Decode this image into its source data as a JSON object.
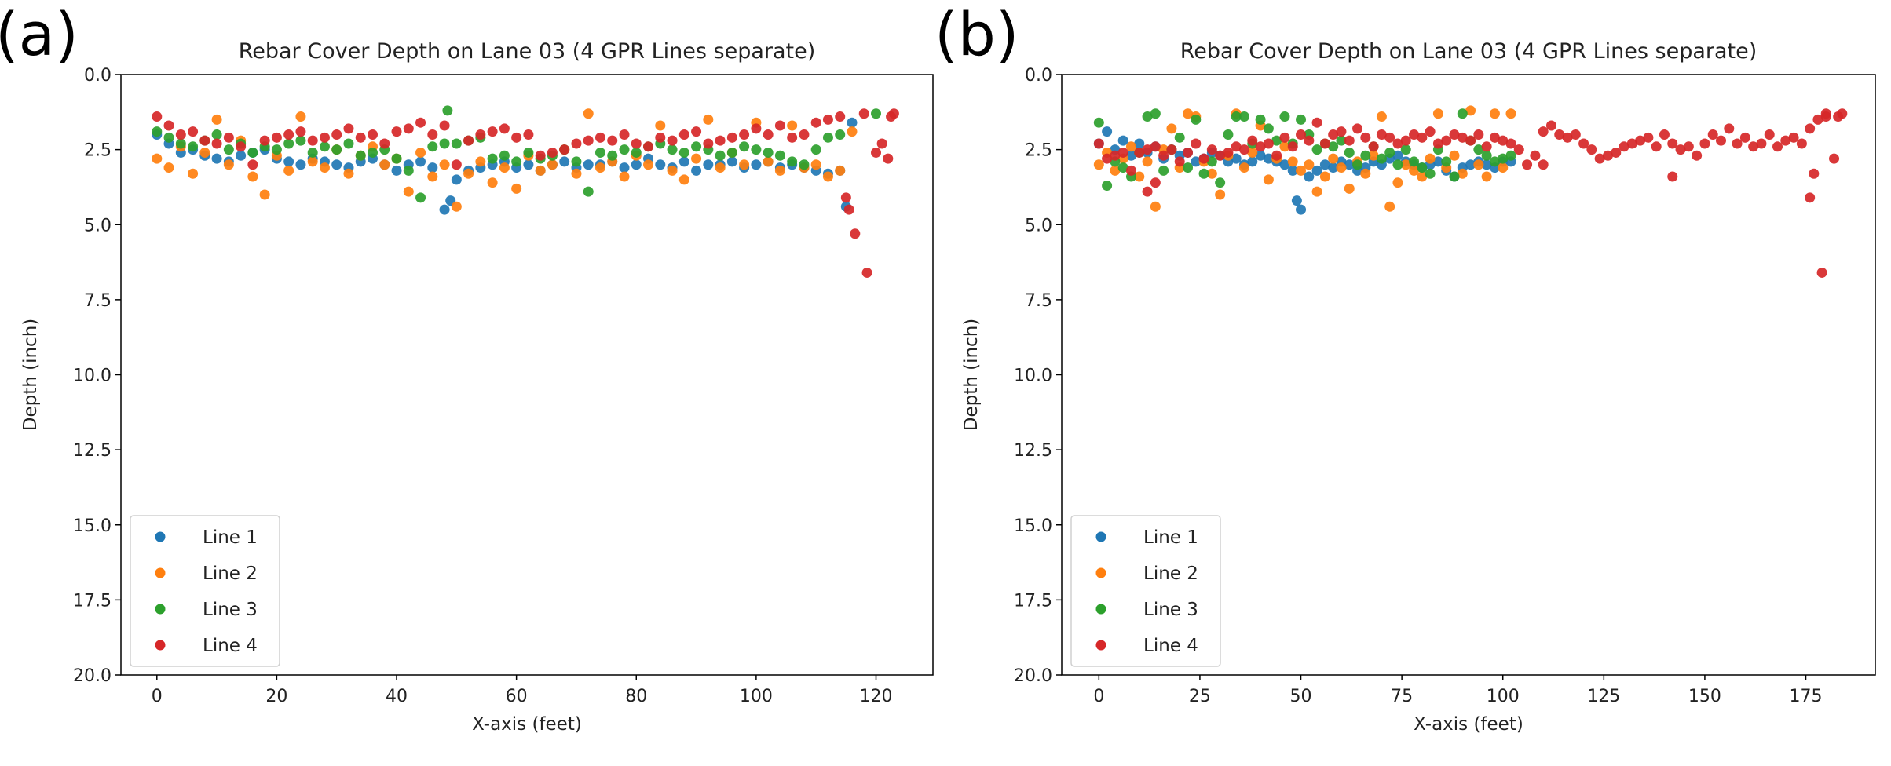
{
  "colors": {
    "Line 1": "#1f77b4",
    "Line 2": "#ff7f0e",
    "Line 3": "#2ca02c",
    "Line 4": "#d62728"
  },
  "chart_data": [
    {
      "panel_label": "(a)",
      "type": "scatter",
      "title": "Rebar Cover Depth on Lane 03 (4 GPR Lines separate)",
      "xlabel": "X-axis (feet)",
      "ylabel": "Depth (inch)",
      "xlim": [
        -6,
        129.5
      ],
      "ylim": [
        0,
        20
      ],
      "y_inverted": true,
      "xticks": [
        0,
        20,
        40,
        60,
        80,
        100,
        120
      ],
      "xtick_labels": [
        "0",
        "20",
        "40",
        "60",
        "80",
        "100",
        "120"
      ],
      "yticks": [
        0,
        2.5,
        5,
        7.5,
        10,
        12.5,
        15,
        17.5,
        20
      ],
      "ytick_labels": [
        "0.0",
        "2.5",
        "5.0",
        "7.5",
        "10.0",
        "12.5",
        "15.0",
        "17.5",
        "20.0"
      ],
      "legend": {
        "placement": "lower-left",
        "entries": [
          "Line 1",
          "Line 2",
          "Line 3",
          "Line 4"
        ]
      },
      "series": [
        {
          "name": "Line 1",
          "x_start": 0,
          "x_step": 2,
          "y": [
            2.0,
            2.3,
            2.6,
            2.5,
            2.7,
            2.8,
            2.9,
            2.7,
            2.6,
            2.5,
            2.8,
            2.9,
            3.0,
            2.8,
            2.9,
            3.0,
            3.1,
            2.9,
            2.8,
            3.0,
            3.2,
            3.0,
            2.9,
            3.1,
            4.5,
            3.5,
            3.2,
            3.1,
            3.0,
            2.9,
            3.1,
            3.0,
            3.2,
            3.0,
            2.9,
            3.1,
            3.0,
            3.0,
            2.9,
            3.1,
            3.0,
            2.8,
            3.0,
            3.1,
            2.9,
            3.2,
            3.0,
            3.0,
            2.9,
            3.1,
            3.0,
            2.9,
            3.1,
            3.0,
            3.1,
            3.2,
            3.3,
            3.2
          ],
          "extra": [
            [
              115,
              4.4
            ],
            [
              116,
              1.6
            ],
            [
              49,
              4.2
            ]
          ]
        },
        {
          "name": "Line 2",
          "x_start": 0,
          "x_step": 2,
          "y": [
            2.8,
            3.1,
            2.4,
            3.3,
            2.6,
            1.5,
            3.0,
            2.2,
            3.4,
            4.0,
            2.7,
            3.2,
            1.4,
            2.9,
            3.1,
            2.5,
            3.3,
            2.7,
            2.4,
            3.0,
            2.8,
            3.9,
            2.6,
            3.4,
            3.0,
            4.4,
            3.3,
            2.9,
            3.6,
            3.1,
            3.8,
            2.7,
            3.2,
            3.0,
            2.5,
            3.3,
            1.3,
            3.1,
            2.9,
            3.4,
            2.7,
            3.0,
            1.7,
            3.2,
            3.5,
            2.8,
            1.5,
            3.1,
            2.6,
            3.0,
            1.6,
            2.9,
            3.2,
            1.7,
            3.1,
            3.0,
            3.4,
            3.2
          ],
          "extra": [
            [
              116,
              1.9
            ]
          ]
        },
        {
          "name": "Line 3",
          "x_start": 0,
          "x_step": 2,
          "y": [
            1.9,
            2.1,
            2.3,
            2.4,
            2.2,
            2.0,
            2.5,
            2.3,
            2.6,
            2.4,
            2.5,
            2.3,
            2.2,
            2.6,
            2.4,
            2.5,
            2.3,
            2.7,
            2.6,
            2.5,
            2.8,
            3.2,
            4.1,
            2.4,
            2.3,
            2.3,
            2.2,
            2.1,
            2.8,
            2.7,
            2.9,
            2.6,
            2.8,
            2.7,
            2.5,
            2.9,
            3.9,
            2.6,
            2.7,
            2.5,
            2.6,
            2.4,
            2.3,
            2.5,
            2.6,
            2.4,
            2.5,
            2.7,
            2.6,
            2.4,
            2.5,
            2.6,
            2.7,
            2.9,
            3.0,
            2.5,
            2.1,
            2.0
          ],
          "extra": [
            [
              48.5,
              1.2
            ],
            [
              120,
              1.3
            ]
          ]
        },
        {
          "name": "Line 4",
          "x_start": 0,
          "x_step": 2,
          "y": [
            1.4,
            1.7,
            2.0,
            1.9,
            2.2,
            2.3,
            2.1,
            2.4,
            3.0,
            2.2,
            2.1,
            2.0,
            1.9,
            2.2,
            2.1,
            2.0,
            1.8,
            2.1,
            2.0,
            2.3,
            1.9,
            1.8,
            1.6,
            2.0,
            1.7,
            3.0,
            2.2,
            2.0,
            1.9,
            1.8,
            2.1,
            2.0,
            2.7,
            2.6,
            2.5,
            2.3,
            2.2,
            2.1,
            2.2,
            2.0,
            2.3,
            2.4,
            2.1,
            2.2,
            2.0,
            1.9,
            2.3,
            2.2,
            2.1,
            2.0,
            1.8,
            2.0,
            1.7,
            2.1,
            2.0,
            1.6,
            1.5,
            1.4
          ],
          "extra": [
            [
              115,
              4.1
            ],
            [
              115.5,
              4.5
            ],
            [
              116.5,
              5.3
            ],
            [
              118.5,
              6.6
            ],
            [
              118,
              1.3
            ],
            [
              120,
              2.6
            ],
            [
              121,
              2.3
            ],
            [
              122,
              2.8
            ],
            [
              122.5,
              1.4
            ],
            [
              123,
              1.3
            ]
          ]
        }
      ]
    },
    {
      "panel_label": "(b)",
      "type": "scatter",
      "title": "Rebar Cover Depth on Lane 03 (4 GPR Lines separate)",
      "xlabel": "X-axis (feet)",
      "ylabel": "Depth (inch)",
      "xlim": [
        -9.2,
        192.2
      ],
      "ylim": [
        0,
        20
      ],
      "y_inverted": true,
      "xticks": [
        0,
        25,
        50,
        75,
        100,
        125,
        150,
        175
      ],
      "xtick_labels": [
        "0",
        "25",
        "50",
        "75",
        "100",
        "125",
        "150",
        "175"
      ],
      "yticks": [
        0,
        2.5,
        5,
        7.5,
        10,
        12.5,
        15,
        17.5,
        20
      ],
      "ytick_labels": [
        "0.0",
        "2.5",
        "5.0",
        "7.5",
        "10.0",
        "12.5",
        "15.0",
        "17.5",
        "20.0"
      ],
      "legend": {
        "placement": "lower-left",
        "entries": [
          "Line 1",
          "Line 2",
          "Line 3",
          "Line 4"
        ]
      },
      "series": [
        {
          "name": "Line 1",
          "x_start": 0,
          "x_step": 2,
          "y": [
            2.3,
            1.9,
            2.5,
            2.2,
            2.7,
            2.3,
            2.6,
            2.4,
            2.8,
            2.5,
            2.7,
            2.6,
            2.9,
            2.8,
            2.6,
            2.7,
            2.9,
            2.8,
            3.0,
            2.9,
            2.7,
            2.8,
            2.9,
            3.0,
            3.2,
            4.5,
            3.4,
            3.2,
            3.0,
            3.1,
            2.9,
            3.0,
            3.2,
            3.1,
            2.9,
            3.0,
            2.8,
            2.7,
            2.9,
            3.0,
            3.1,
            3.0,
            2.9,
            3.2,
            3.4,
            3.1,
            3.0,
            2.9,
            3.0,
            3.1,
            2.9,
            2.9
          ],
          "extra": [
            [
              49,
              4.2
            ]
          ]
        },
        {
          "name": "Line 2",
          "x_start": 0,
          "x_step": 2,
          "y": [
            3.0,
            2.6,
            3.2,
            2.8,
            2.4,
            3.4,
            2.9,
            4.4,
            2.5,
            1.8,
            3.1,
            1.3,
            1.4,
            2.9,
            3.3,
            4.0,
            2.7,
            1.3,
            3.1,
            2.6,
            1.7,
            3.5,
            2.8,
            2.4,
            2.9,
            3.2,
            3.0,
            3.9,
            3.4,
            2.8,
            3.1,
            3.8,
            2.9,
            3.3,
            2.7,
            1.4,
            4.4,
            3.6,
            3.0,
            3.2,
            3.4,
            2.8,
            1.3,
            3.1,
            2.7,
            3.3,
            1.2,
            3.0,
            3.4,
            1.3,
            3.1,
            1.3
          ],
          "extra": []
        },
        {
          "name": "Line 3",
          "x_start": 0,
          "x_step": 2,
          "y": [
            1.6,
            3.7,
            2.9,
            3.1,
            3.4,
            2.6,
            1.4,
            1.3,
            3.2,
            2.5,
            2.1,
            3.1,
            1.5,
            3.3,
            2.9,
            3.6,
            2.0,
            1.4,
            1.4,
            2.3,
            1.5,
            1.8,
            2.2,
            1.4,
            2.3,
            1.5,
            2.0,
            2.5,
            2.3,
            2.4,
            2.2,
            2.6,
            3.0,
            2.7,
            2.4,
            2.8,
            2.6,
            3.0,
            2.5,
            2.9,
            3.1,
            3.3,
            2.5,
            2.9,
            3.4,
            1.3,
            2.2,
            2.5,
            2.7,
            2.9,
            2.8,
            2.7
          ],
          "extra": []
        },
        {
          "name": "Line 4",
          "x_start": 0,
          "x_step": 2,
          "y": [
            2.3,
            2.8,
            2.7,
            2.6,
            3.2,
            2.6,
            2.5,
            2.4,
            2.7,
            2.5,
            2.9,
            2.6,
            2.3,
            2.8,
            2.5,
            2.7,
            2.6,
            2.4,
            2.5,
            2.2,
            2.4,
            2.3,
            2.7,
            2.1,
            2.4,
            2.0,
            2.2,
            1.6,
            2.3,
            2.0,
            1.9,
            2.2,
            1.8,
            2.1,
            2.4,
            2.0,
            2.1,
            2.3,
            2.2,
            2.0,
            2.1,
            1.9,
            2.3,
            2.2,
            2.0,
            2.1,
            2.2,
            2.0,
            2.4,
            2.1,
            2.2,
            2.3,
            2.5,
            3.0,
            2.7,
            1.9,
            1.7,
            2.0,
            2.1,
            2.0,
            2.3,
            2.5,
            2.8,
            2.7,
            2.6,
            2.4,
            2.3,
            2.2,
            2.1,
            2.4,
            2.0,
            2.3,
            2.5,
            2.4,
            2.7,
            2.3,
            2.0,
            2.2,
            1.8,
            2.3,
            2.1,
            2.4,
            2.3,
            2.0,
            2.4,
            2.2,
            2.1,
            2.3,
            1.8,
            1.5,
            1.4
          ],
          "extra": [
            [
              12,
              3.9
            ],
            [
              14,
              3.6
            ],
            [
              110,
              3.0
            ],
            [
              142,
              3.4
            ],
            [
              176,
              4.1
            ],
            [
              177,
              3.3
            ],
            [
              179,
              6.6
            ],
            [
              180,
              1.3
            ],
            [
              182,
              2.8
            ],
            [
              183,
              1.4
            ],
            [
              184,
              1.3
            ]
          ]
        }
      ]
    }
  ]
}
